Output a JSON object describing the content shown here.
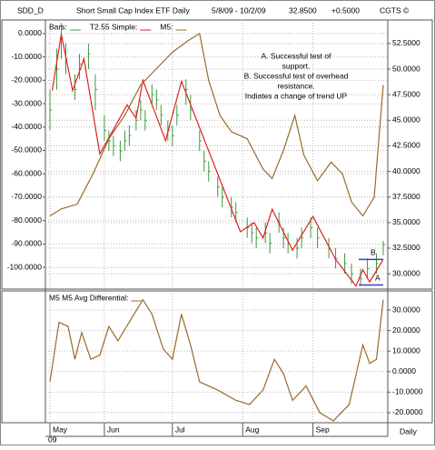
{
  "header": {
    "symbol": "SDD_D",
    "name": "Short Small Cap Index ETF Daily",
    "range": "5/8/09 - 10/2/09",
    "last": "32.8500",
    "change": "+0.5000",
    "source": "CGTS ©"
  },
  "chart_data": [
    {
      "type": "ohlc",
      "annotation": [
        "A. Successful test of",
        "support.",
        "B.  Successful test of overhead",
        "resistance.",
        "Indiates a change of trend UP"
      ],
      "levels": [
        {
          "label": "B",
          "value": 31.4,
          "color": "#3040d0"
        },
        {
          "label": "A",
          "value": 28.9,
          "color": "#3040d0"
        }
      ],
      "ylim": [
        -109.3,
        5.8
      ],
      "yticks": [
        {
          "value": 0,
          "label": "0.0000"
        },
        {
          "value": -10,
          "label": "-10.0000"
        },
        {
          "value": -20,
          "label": "-20.0000"
        },
        {
          "value": -30,
          "label": "-30.0000"
        },
        {
          "value": -40,
          "label": "-40.0000"
        },
        {
          "value": -50,
          "label": "-50.0000"
        },
        {
          "value": -60,
          "label": "-60.0000"
        },
        {
          "value": -70,
          "label": "-70.0000"
        },
        {
          "value": -80,
          "label": "-80.0000"
        },
        {
          "value": -90,
          "label": "-90.0000"
        },
        {
          "value": -100,
          "label": "-100.0000"
        }
      ],
      "y2lim": [
        28.5,
        54.8
      ],
      "y2ticks": [
        {
          "value": 30,
          "label": "30.0000"
        },
        {
          "value": 32.5,
          "label": "32.5000"
        },
        {
          "value": 35,
          "label": "35.0000"
        },
        {
          "value": 37.5,
          "label": "37.5000"
        },
        {
          "value": 40,
          "label": "40.0000"
        },
        {
          "value": 42.5,
          "label": "42.5000"
        },
        {
          "value": 45,
          "label": "45.0000"
        },
        {
          "value": 47.5,
          "label": "47.5000"
        },
        {
          "value": 50,
          "label": "50.0000"
        },
        {
          "value": 52.5,
          "label": "52.5000"
        }
      ],
      "grid": true,
      "series": [
        {
          "name": "Bars:",
          "color": "#3a9a3a",
          "axis": "y2",
          "x": [
            "2009-05-08",
            "2009-05-11",
            "2009-05-13",
            "2009-05-15",
            "2009-05-19",
            "2009-05-21",
            "2009-05-25",
            "2009-05-28",
            "2009-06-01",
            "2009-06-03",
            "2009-06-05",
            "2009-06-08",
            "2009-06-10",
            "2009-06-12",
            "2009-06-15",
            "2009-06-17",
            "2009-06-19",
            "2009-06-22",
            "2009-06-24",
            "2009-06-26",
            "2009-06-29",
            "2009-07-01",
            "2009-07-03",
            "2009-07-07",
            "2009-07-09",
            "2009-07-13",
            "2009-07-15",
            "2009-07-17",
            "2009-07-21",
            "2009-07-23",
            "2009-07-27",
            "2009-07-29",
            "2009-08-03",
            "2009-08-05",
            "2009-08-07",
            "2009-08-11",
            "2009-08-13",
            "2009-08-17",
            "2009-08-19",
            "2009-08-21",
            "2009-08-25",
            "2009-08-27",
            "2009-08-31",
            "2009-09-03",
            "2009-09-08",
            "2009-09-11",
            "2009-09-15",
            "2009-09-18",
            "2009-09-22",
            "2009-09-25",
            "2009-09-29",
            "2009-10-02"
          ],
          "high": [
            48,
            52,
            54.5,
            52.5,
            49.5,
            51.5,
            52.5,
            49.5,
            45.5,
            44,
            43.5,
            43,
            44,
            44.5,
            46,
            47,
            46,
            48.5,
            48,
            46.5,
            45,
            44.5,
            46.5,
            49,
            47.5,
            44,
            42,
            41,
            39.5,
            38.5,
            37.5,
            37,
            35.5,
            35,
            34.5,
            35,
            34,
            36,
            34.5,
            34,
            33.5,
            34.5,
            35.5,
            34.5,
            33.5,
            32.5,
            32,
            31,
            30.5,
            31.5,
            32,
            33.2
          ],
          "low": [
            44,
            48,
            51,
            49.5,
            47,
            49,
            50,
            46,
            43,
            42,
            41.5,
            41,
            42,
            42.5,
            44,
            45,
            44,
            46.5,
            46,
            44.5,
            43,
            42.5,
            44.5,
            46.5,
            45,
            42,
            40,
            39,
            37.5,
            36.5,
            35.5,
            35,
            33.5,
            33,
            32.5,
            33,
            32,
            34,
            32.5,
            32,
            31.5,
            32.5,
            33.5,
            32.5,
            31.5,
            30.5,
            30,
            29,
            28.8,
            29.5,
            30,
            31.8
          ],
          "close": [
            46,
            50,
            53,
            51,
            48,
            50.5,
            51.5,
            48,
            44,
            43,
            42.5,
            42,
            43,
            43.5,
            45,
            46,
            45,
            47.5,
            47,
            45.5,
            44,
            43.5,
            45.5,
            48,
            46,
            43,
            41,
            40,
            38.5,
            37.5,
            36.5,
            36,
            34.5,
            34,
            33.5,
            34,
            33,
            35,
            33.5,
            33,
            32.5,
            33.5,
            34.5,
            33.5,
            32.5,
            31.5,
            31,
            30,
            29.5,
            30.5,
            31,
            32.85
          ]
        },
        {
          "name": "T2.55 Simple:",
          "color": "#e02020",
          "axis": "y2",
          "x": [
            "2009-05-09",
            "2009-05-13",
            "2009-05-18",
            "2009-05-23",
            "2009-05-30",
            "2009-06-11",
            "2009-06-15",
            "2009-06-18",
            "2009-06-28",
            "2009-07-05",
            "2009-07-31",
            "2009-08-06",
            "2009-08-10",
            "2009-08-14",
            "2009-08-23",
            "2009-09-01",
            "2009-09-11",
            "2009-09-20",
            "2009-09-23",
            "2009-09-26",
            "2009-10-02"
          ],
          "values": [
            47.9,
            53.4,
            47.9,
            51,
            41.7,
            46.5,
            45.2,
            48.9,
            43,
            48.8,
            34.1,
            35,
            33.5,
            36.3,
            32.3,
            35.6,
            31.4,
            28.8,
            30.4,
            29.2,
            31.4
          ]
        },
        {
          "name": "M5:",
          "color": "#9a6a2a",
          "axis": "y",
          "x": [
            "2009-05-08",
            "2009-05-13",
            "2009-05-20",
            "2009-05-27",
            "2009-06-03",
            "2009-06-10",
            "2009-06-17",
            "2009-06-24",
            "2009-07-01",
            "2009-07-08",
            "2009-07-13",
            "2009-07-17",
            "2009-07-22",
            "2009-07-27",
            "2009-08-03",
            "2009-08-10",
            "2009-08-14",
            "2009-08-19",
            "2009-08-24",
            "2009-08-28",
            "2009-09-03",
            "2009-09-09",
            "2009-09-14",
            "2009-09-18",
            "2009-09-23",
            "2009-09-28",
            "2009-10-02"
          ],
          "values": [
            -78,
            -75,
            -73,
            -60,
            -45,
            -35,
            -22,
            -15,
            -8,
            -3,
            0,
            -20,
            -35,
            -42,
            -45,
            -58,
            -62,
            -50,
            -35,
            -52,
            -63,
            -55,
            -60,
            -72,
            -78,
            -70,
            -22
          ]
        }
      ]
    },
    {
      "type": "line",
      "y2lim": [
        -24.9,
        39.3
      ],
      "y2ticks": [
        {
          "value": 30,
          "label": "30.0000"
        },
        {
          "value": 20,
          "label": "20.0000"
        },
        {
          "value": 10,
          "label": "10.0000"
        },
        {
          "value": 0,
          "label": "0.0000"
        },
        {
          "value": -10,
          "label": "-10.0000"
        },
        {
          "value": -20,
          "label": "-20.0000"
        }
      ],
      "xlim": [
        "2009-05-06",
        "2009-10-04"
      ],
      "xticks": [
        {
          "value": "2009-05-08",
          "label": "May"
        },
        {
          "value": "2009-06-01",
          "label": "Jun"
        },
        {
          "value": "2009-07-01",
          "label": "Jul"
        },
        {
          "value": "2009-08-01",
          "label": "Aug"
        },
        {
          "value": "2009-09-01",
          "label": "Sep"
        }
      ],
      "year_label": "09",
      "period": "Daily",
      "grid": true,
      "series": [
        {
          "name": "M5 M5 Avg Differential:",
          "color": "#9a6a2a",
          "axis": "y2",
          "x": [
            "2009-05-08",
            "2009-05-12",
            "2009-05-16",
            "2009-05-19",
            "2009-05-22",
            "2009-05-26",
            "2009-05-30",
            "2009-06-03",
            "2009-06-07",
            "2009-06-13",
            "2009-06-18",
            "2009-06-22",
            "2009-06-27",
            "2009-07-01",
            "2009-07-05",
            "2009-07-09",
            "2009-07-13",
            "2009-07-21",
            "2009-07-29",
            "2009-08-04",
            "2009-08-10",
            "2009-08-15",
            "2009-08-19",
            "2009-08-23",
            "2009-08-29",
            "2009-09-04",
            "2009-09-10",
            "2009-09-17",
            "2009-09-23",
            "2009-09-26",
            "2009-09-29",
            "2009-10-02"
          ],
          "values": [
            -5,
            24,
            22,
            6,
            19,
            6,
            8,
            22,
            15,
            26,
            35,
            28,
            11,
            6,
            28,
            13,
            -5,
            -9,
            -14,
            -16,
            -9,
            6,
            -1,
            -14,
            -7,
            -20,
            -24,
            -16,
            13,
            4,
            6,
            35
          ]
        }
      ]
    }
  ]
}
